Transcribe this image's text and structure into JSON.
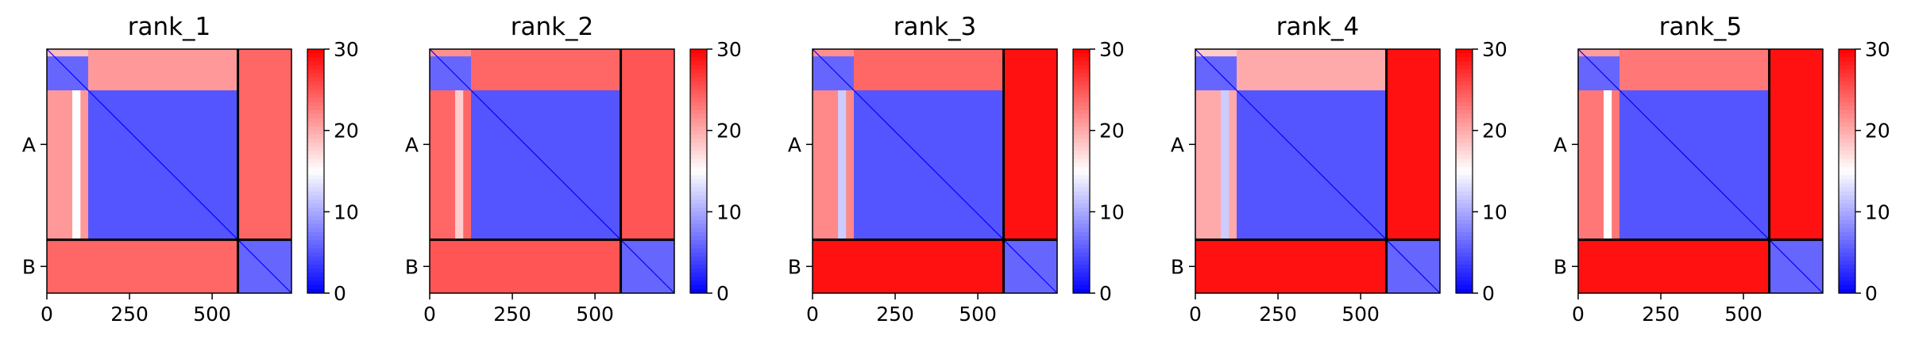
{
  "chart_data": {
    "type": "heatmap",
    "colormap": {
      "name": "bwr",
      "low": "#0000ff",
      "mid": "#ffffff",
      "high": "#ff0000"
    },
    "color_range": [
      0,
      30
    ],
    "colorbar_ticks": [
      "0",
      "10",
      "20",
      "30"
    ],
    "x_ticks": [
      {
        "value": 0,
        "label": "0"
      },
      {
        "value": 250,
        "label": "250"
      },
      {
        "value": 500,
        "label": "500"
      }
    ],
    "axis_extent": [
      0,
      740
    ],
    "chain_boundary": 578,
    "chain_labels": [
      {
        "label": "A",
        "center": 289
      },
      {
        "label": "B",
        "center": 659
      }
    ],
    "panels": [
      {
        "title": "rank_1",
        "AA_sub": 6,
        "AA_block2": 5,
        "AB_upper": 21,
        "AB_lower": 21,
        "AB_band": 15,
        "BA_error": 24,
        "BB_error": 6
      },
      {
        "title": "rank_2",
        "AA_sub": 6,
        "AA_block2": 5,
        "AB_upper": 24,
        "AB_lower": 24,
        "AB_band": 18,
        "BA_error": 25,
        "BB_error": 6
      },
      {
        "title": "rank_3",
        "AA_sub": 6,
        "AA_block2": 5,
        "AB_upper": 24,
        "AB_lower": 22,
        "AB_band": 12,
        "BA_error": 29,
        "BB_error": 6
      },
      {
        "title": "rank_4",
        "AA_sub": 6,
        "AA_block2": 5,
        "AB_upper": 20,
        "AB_lower": 20,
        "AB_band": 12,
        "BA_error": 29,
        "BB_error": 6
      },
      {
        "title": "rank_5",
        "AA_sub": 6,
        "AA_block2": 5,
        "AB_upper": 23,
        "AB_lower": 23,
        "AB_band": 15,
        "BA_error": 29,
        "BB_error": 6
      }
    ]
  }
}
